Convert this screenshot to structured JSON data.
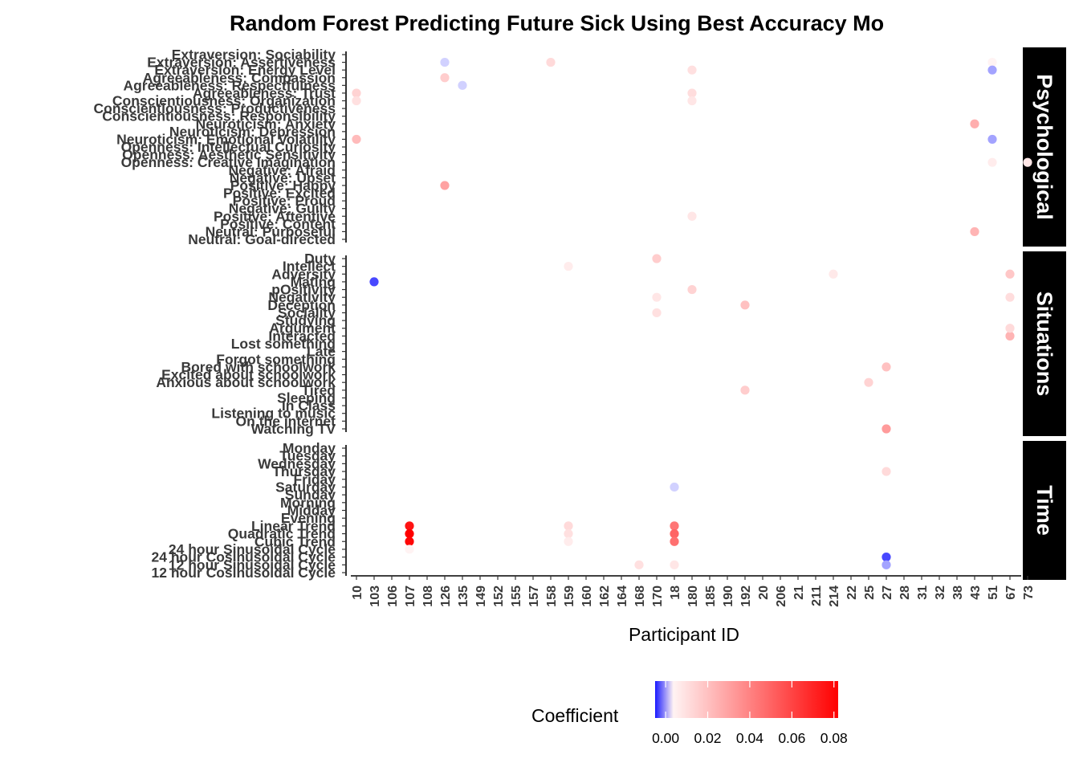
{
  "chart_data": {
    "type": "scatter",
    "title": "Random Forest Predicting Future Sick Using Best Accuracy Mo",
    "xlabel": "Participant ID",
    "ylabel": "",
    "x_categories": [
      "10",
      "103",
      "106",
      "107",
      "108",
      "126",
      "135",
      "149",
      "152",
      "155",
      "157",
      "158",
      "159",
      "160",
      "162",
      "164",
      "168",
      "170",
      "18",
      "180",
      "185",
      "190",
      "192",
      "20",
      "206",
      "21",
      "211",
      "214",
      "22",
      "25",
      "27",
      "28",
      "31",
      "32",
      "38",
      "43",
      "51",
      "67",
      "73"
    ],
    "facets": [
      {
        "name": "Psychological",
        "rows": [
          "Extraversion: Sociability",
          "Extraversion: Assertiveness",
          "Extraversion: Energy Level",
          "Agreeableness: Compassion",
          "Agreeableness: Respectfulness",
          "Agreeableness: Trust",
          "Conscientiousness: Organization",
          "Conscientiousness: Productiveness",
          "Conscientiousness: Responsibility",
          "Neuroticism: Anxiety",
          "Neuroticism: Depression",
          "Neuroticism: Emotional Volatility",
          "Openness: Intellectual Curiosity",
          "Openness: Aesthetic Sensitivity",
          "Openness: Creative Imagination",
          "Negative: Afraid",
          "Negative: Upset",
          "Positive: Happy",
          "Positive: Excited",
          "Positive: Proud",
          "Negative: Guilty",
          "Positive: Attentive",
          "Positive: Content",
          "Neutral: Purposeful",
          "Neutral: Goal-directed"
        ]
      },
      {
        "name": "Situations",
        "rows": [
          "Duty",
          "Intellect",
          "Adversity",
          "Mating",
          "pOsitivity",
          "Negativity",
          "Deception",
          "Sociality",
          "Studying",
          "Argument",
          "Interacted",
          "Lost something",
          "Late",
          "Forgot something",
          "Bored with schoolwork",
          "Excited about schoolwork",
          "Anxious about schoolwork",
          "Tired",
          "Sleeping",
          "In Class",
          "Listening to music",
          "On the internet",
          "Watching TV"
        ]
      },
      {
        "name": "Time",
        "rows": [
          "Monday",
          "Tuesday",
          "Wednesday",
          "Thursday",
          "Friday",
          "Saturday",
          "Sunday",
          "Morning",
          "Midday",
          "Evening",
          "Linear Trend",
          "Quadratic Trend",
          "Cubic Trend",
          "24 hour Sinusoidal Cycle",
          "24 hour Cosinusoidal Cycle",
          "12 hour Sinusoidal Cycle",
          "12 hour Cosinusoidal Cycle"
        ]
      }
    ],
    "points": [
      {
        "facet": "Psychological",
        "x": "158",
        "y": "Extraversion: Assertiveness",
        "value": 0.012
      },
      {
        "facet": "Psychological",
        "x": "126",
        "y": "Extraversion: Assertiveness",
        "value": -0.001
      },
      {
        "facet": "Psychological",
        "x": "51",
        "y": "Extraversion: Assertiveness",
        "value": 0.004
      },
      {
        "facet": "Psychological",
        "x": "51",
        "y": "Extraversion: Energy Level",
        "value": -0.002
      },
      {
        "facet": "Psychological",
        "x": "180",
        "y": "Extraversion: Energy Level",
        "value": 0.01
      },
      {
        "facet": "Psychological",
        "x": "126",
        "y": "Agreeableness: Compassion",
        "value": 0.016
      },
      {
        "facet": "Psychological",
        "x": "135",
        "y": "Agreeableness: Respectfulness",
        "value": -0.001
      },
      {
        "facet": "Psychological",
        "x": "10",
        "y": "Agreeableness: Trust",
        "value": 0.014
      },
      {
        "facet": "Psychological",
        "x": "180",
        "y": "Agreeableness: Trust",
        "value": 0.011
      },
      {
        "facet": "Psychological",
        "x": "10",
        "y": "Conscientiousness: Organization",
        "value": 0.01
      },
      {
        "facet": "Psychological",
        "x": "180",
        "y": "Conscientiousness: Organization",
        "value": 0.008
      },
      {
        "facet": "Psychological",
        "x": "43",
        "y": "Neuroticism: Anxiety",
        "value": 0.026
      },
      {
        "facet": "Psychological",
        "x": "10",
        "y": "Neuroticism: Emotional Volatility",
        "value": 0.022
      },
      {
        "facet": "Psychological",
        "x": "51",
        "y": "Neuroticism: Emotional Volatility",
        "value": -0.002
      },
      {
        "facet": "Psychological",
        "x": "51",
        "y": "Openness: Creative Imagination",
        "value": 0.006
      },
      {
        "facet": "Psychological",
        "x": "73",
        "y": "Openness: Creative Imagination",
        "value": 0.008
      },
      {
        "facet": "Psychological",
        "x": "126",
        "y": "Positive: Happy",
        "value": 0.03
      },
      {
        "facet": "Psychological",
        "x": "180",
        "y": "Positive: Attentive",
        "value": 0.008
      },
      {
        "facet": "Psychological",
        "x": "43",
        "y": "Neutral: Purposeful",
        "value": 0.024
      },
      {
        "facet": "Situations",
        "x": "170",
        "y": "Duty",
        "value": 0.016
      },
      {
        "facet": "Situations",
        "x": "159",
        "y": "Intellect",
        "value": 0.006
      },
      {
        "facet": "Situations",
        "x": "214",
        "y": "Adversity",
        "value": 0.007
      },
      {
        "facet": "Situations",
        "x": "67",
        "y": "Adversity",
        "value": 0.018
      },
      {
        "facet": "Situations",
        "x": "103",
        "y": "Mating",
        "value": -0.004
      },
      {
        "facet": "Situations",
        "x": "180",
        "y": "pOsitivity",
        "value": 0.014
      },
      {
        "facet": "Situations",
        "x": "170",
        "y": "Negativity",
        "value": 0.008
      },
      {
        "facet": "Situations",
        "x": "67",
        "y": "Negativity",
        "value": 0.011
      },
      {
        "facet": "Situations",
        "x": "192",
        "y": "Deception",
        "value": 0.02
      },
      {
        "facet": "Situations",
        "x": "170",
        "y": "Sociality",
        "value": 0.01
      },
      {
        "facet": "Situations",
        "x": "67",
        "y": "Interacted",
        "value": 0.024
      },
      {
        "facet": "Situations",
        "x": "67",
        "y": "Argument",
        "value": 0.012
      },
      {
        "facet": "Situations",
        "x": "27",
        "y": "Bored with schoolwork",
        "value": 0.02
      },
      {
        "facet": "Situations",
        "x": "25",
        "y": "Anxious about schoolwork",
        "value": 0.014
      },
      {
        "facet": "Situations",
        "x": "192",
        "y": "Tired",
        "value": 0.016
      },
      {
        "facet": "Situations",
        "x": "27",
        "y": "Watching TV",
        "value": 0.032
      },
      {
        "facet": "Time",
        "x": "27",
        "y": "Thursday",
        "value": 0.012
      },
      {
        "facet": "Time",
        "x": "18",
        "y": "Saturday",
        "value": -0.001
      },
      {
        "facet": "Time",
        "x": "107",
        "y": "Linear Trend",
        "value": 0.076
      },
      {
        "facet": "Time",
        "x": "107",
        "y": "Quadratic Trend",
        "value": 0.082
      },
      {
        "facet": "Time",
        "x": "107",
        "y": "Cubic Trend",
        "value": 0.08
      },
      {
        "facet": "Time",
        "x": "18",
        "y": "Linear Trend",
        "value": 0.044
      },
      {
        "facet": "Time",
        "x": "18",
        "y": "Quadratic Trend",
        "value": 0.05
      },
      {
        "facet": "Time",
        "x": "18",
        "y": "Cubic Trend",
        "value": 0.046
      },
      {
        "facet": "Time",
        "x": "159",
        "y": "Linear Trend",
        "value": 0.012
      },
      {
        "facet": "Time",
        "x": "159",
        "y": "Quadratic Trend",
        "value": 0.01
      },
      {
        "facet": "Time",
        "x": "159",
        "y": "Cubic Trend",
        "value": 0.006
      },
      {
        "facet": "Time",
        "x": "168",
        "y": "12 hour Sinusoidal Cycle",
        "value": 0.01
      },
      {
        "facet": "Time",
        "x": "18",
        "y": "12 hour Sinusoidal Cycle",
        "value": 0.008
      },
      {
        "facet": "Time",
        "x": "107",
        "y": "24 hour Sinusoidal Cycle",
        "value": 0.004
      },
      {
        "facet": "Time",
        "x": "27",
        "y": "24 hour Cosinusoidal Cycle",
        "value": -0.004
      },
      {
        "facet": "Time",
        "x": "27",
        "y": "12 hour Sinusoidal Cycle",
        "value": -0.002
      }
    ],
    "legend": {
      "title": "Coefficient",
      "ticks": [
        "0.00",
        "0.02",
        "0.04",
        "0.06",
        "0.08"
      ],
      "range": [
        -0.005,
        0.082
      ],
      "position": "bottom"
    },
    "colors": {
      "low": "#1a1aff",
      "mid": "#ffffff",
      "high": "#ff0000"
    }
  }
}
